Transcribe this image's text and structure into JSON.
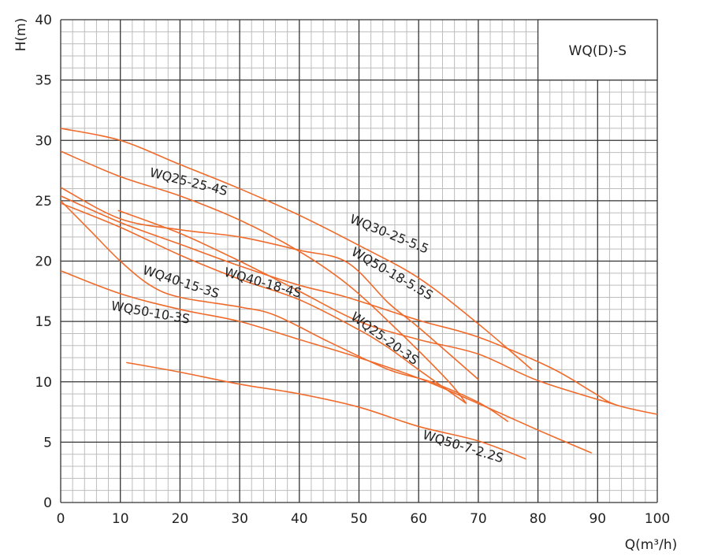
{
  "chart_data": {
    "type": "line",
    "title": "WQ(D)-S",
    "xlabel": "Q(m³/h)",
    "ylabel": "H(m)",
    "xlim": [
      0,
      100
    ],
    "ylim": [
      0,
      40
    ],
    "x_ticks": [
      "0",
      "10",
      "20",
      "30",
      "40",
      "50",
      "60",
      "70",
      "80",
      "90",
      "100"
    ],
    "y_ticks": [
      "0",
      "5",
      "10",
      "15",
      "20",
      "25",
      "30",
      "35",
      "40"
    ],
    "grid": true,
    "line_color": "#f06a2a",
    "series": [
      {
        "name": "WQ30-25-5.5",
        "points": [
          [
            0,
            31
          ],
          [
            10,
            30
          ],
          [
            20,
            28
          ],
          [
            30,
            26
          ],
          [
            40,
            23.8
          ],
          [
            50,
            21.3
          ],
          [
            60,
            18.6
          ],
          [
            70,
            14.8
          ],
          [
            79,
            11
          ]
        ]
      },
      {
        "name": "WQ25-25-4S",
        "points": [
          [
            0,
            29.1
          ],
          [
            10,
            27
          ],
          [
            20,
            25.4
          ],
          [
            30,
            23.4
          ],
          [
            40,
            20.8
          ],
          [
            48,
            18.1
          ],
          [
            56,
            14.5
          ],
          [
            64.7,
            10.2
          ],
          [
            68,
            8.2
          ]
        ]
      },
      {
        "name": "WQ50-18-5.5S",
        "points": [
          [
            0,
            26.1
          ],
          [
            10,
            23.5
          ],
          [
            20,
            22.6
          ],
          [
            30,
            22
          ],
          [
            40,
            20.9
          ],
          [
            48,
            19.9
          ],
          [
            55,
            16.5
          ],
          [
            60,
            14.5
          ],
          [
            70,
            10.2
          ]
        ]
      },
      {
        "name": "",
        "points": [
          [
            0,
            25.4
          ],
          [
            10,
            23.2
          ],
          [
            20,
            21.4
          ],
          [
            30,
            19.6
          ],
          [
            40,
            18
          ],
          [
            48,
            17
          ],
          [
            60,
            15.1
          ],
          [
            70,
            13.7
          ],
          [
            82,
            11.2
          ],
          [
            89,
            9.2
          ],
          [
            93,
            8.1
          ],
          [
            100,
            7.3
          ]
        ]
      },
      {
        "name": "WQ40-18-4S",
        "points": [
          [
            9.6,
            24.2
          ],
          [
            20,
            22.3
          ],
          [
            30,
            20
          ],
          [
            40,
            17.5
          ],
          [
            50,
            15
          ],
          [
            60,
            13.5
          ],
          [
            70,
            12.3
          ],
          [
            80,
            10.1
          ],
          [
            93,
            8.1
          ]
        ]
      },
      {
        "name": "WQ40-15-3S",
        "points": [
          [
            0,
            25
          ],
          [
            5,
            22.5
          ],
          [
            10,
            20
          ],
          [
            15,
            18
          ],
          [
            20,
            17
          ],
          [
            30,
            16.2
          ],
          [
            36,
            15.5
          ],
          [
            45,
            13.3
          ],
          [
            55,
            11
          ],
          [
            62,
            10
          ],
          [
            70,
            8.3
          ],
          [
            75,
            6.7
          ]
        ]
      },
      {
        "name": "WQ25-20-3S",
        "points": [
          [
            0,
            24.8
          ],
          [
            10,
            22.8
          ],
          [
            20,
            20.5
          ],
          [
            30,
            18.5
          ],
          [
            40,
            16.8
          ],
          [
            50,
            14.3
          ],
          [
            55,
            12.8
          ],
          [
            60,
            11
          ],
          [
            68,
            8.2
          ]
        ]
      },
      {
        "name": "WQ50-10-3S",
        "points": [
          [
            0,
            19.2
          ],
          [
            10,
            17.3
          ],
          [
            20,
            16
          ],
          [
            30,
            15
          ],
          [
            40,
            13.5
          ],
          [
            50,
            12
          ],
          [
            60,
            10.3
          ],
          [
            70,
            8.2
          ],
          [
            80,
            6
          ],
          [
            89,
            4.1
          ]
        ]
      },
      {
        "name": "WQ50-7-2.2S",
        "points": [
          [
            11,
            11.6
          ],
          [
            20,
            10.8
          ],
          [
            30,
            9.8
          ],
          [
            40,
            9
          ],
          [
            50,
            7.9
          ],
          [
            60,
            6.3
          ],
          [
            70,
            5.1
          ],
          [
            78,
            3.6
          ]
        ]
      }
    ]
  }
}
